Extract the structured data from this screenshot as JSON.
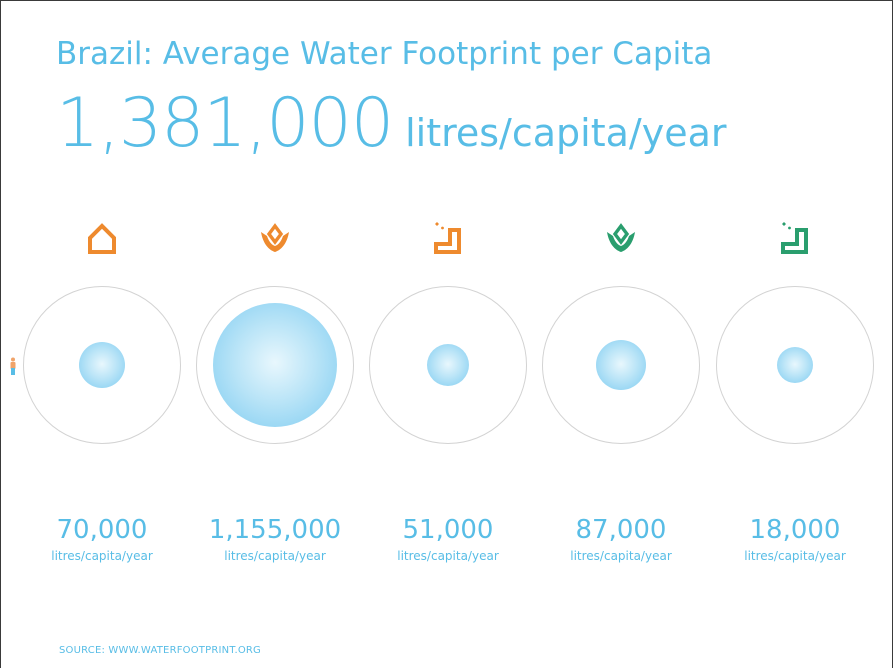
{
  "title": "Brazil: Average Water Footprint per Capita",
  "total": {
    "value": "1,381,000",
    "unit": "litres/capita/year"
  },
  "colors": {
    "accent": "#58bde6",
    "orange": "#ee8a2e",
    "green": "#2a9e6e",
    "ring": "#d3d3d3"
  },
  "chart_data": {
    "type": "bubble",
    "unit": "litres/capita/year",
    "categories": [
      {
        "icon": "house-icon",
        "color": "orange",
        "label": "70,000",
        "value": 70000
      },
      {
        "icon": "crop-icon",
        "color": "orange",
        "label": "1,155,000",
        "value": 1155000
      },
      {
        "icon": "industry-icon",
        "color": "orange",
        "label": "51,000",
        "value": 51000
      },
      {
        "icon": "crop-icon",
        "color": "green",
        "label": "87,000",
        "value": 87000
      },
      {
        "icon": "industry-icon",
        "color": "green",
        "label": "18,000",
        "value": 18000
      }
    ]
  },
  "source": "SOURCE: WWW.WATERFOOTPRINT.ORG"
}
